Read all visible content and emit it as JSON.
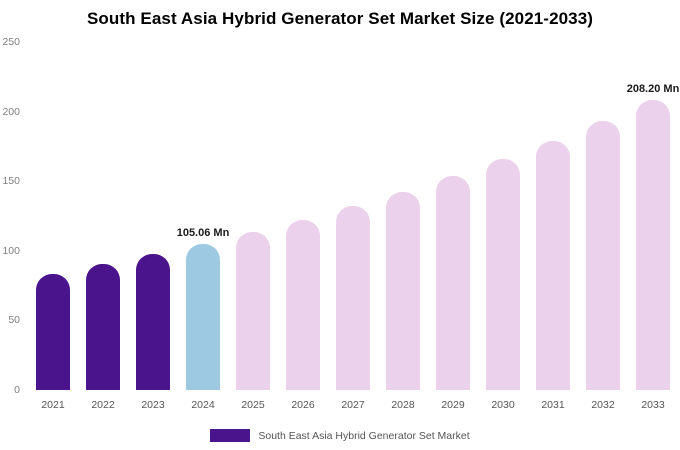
{
  "title": "South East Asia Hybrid Generator Set Market Size (2021-2033)",
  "legend": {
    "label": "South East Asia Hybrid Generator Set Market",
    "color": "#4A148C"
  },
  "chart_data": {
    "type": "bar",
    "title": "South East Asia Hybrid Generator Set Market Size (2021-2033)",
    "unit": "Mn",
    "categories": [
      "2021",
      "2022",
      "2023",
      "2024",
      "2025",
      "2026",
      "2027",
      "2028",
      "2029",
      "2030",
      "2031",
      "2032",
      "2033"
    ],
    "values": [
      83.6,
      90.2,
      97.4,
      105.06,
      113.4,
      122.3,
      132.0,
      142.4,
      153.7,
      165.8,
      178.9,
      193.0,
      208.2
    ],
    "bar_colors": [
      "#4A148C",
      "#4A148C",
      "#4A148C",
      "#9EC9E2",
      "#EBD1EC",
      "#EBD1EC",
      "#EBD1EC",
      "#EBD1EC",
      "#EBD1EC",
      "#EBD1EC",
      "#EBD1EC",
      "#EBD1EC",
      "#EBD1EC"
    ],
    "ylim": [
      0,
      250
    ],
    "yticks": [
      0,
      50,
      100,
      150,
      200,
      250
    ],
    "grid": false,
    "legend_position": "bottom",
    "annotations": [
      {
        "category": "2024",
        "text": "105.06 Mn"
      },
      {
        "category": "2033",
        "text": "208.20 Mn"
      }
    ]
  }
}
